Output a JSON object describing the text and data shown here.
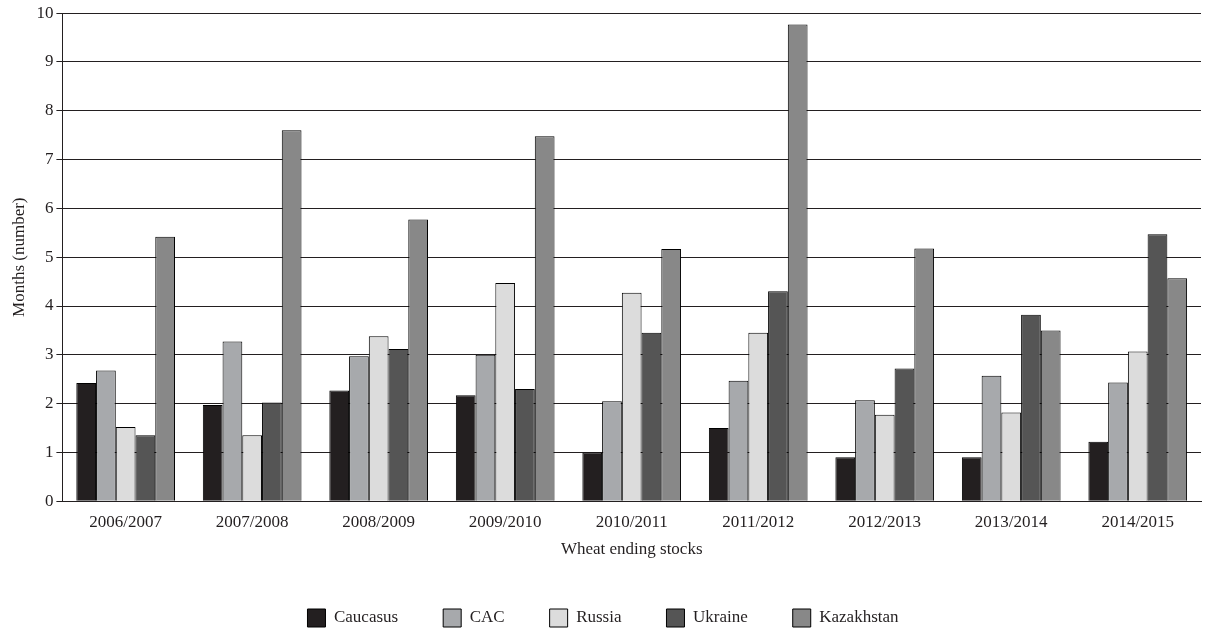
{
  "chart_data": {
    "type": "bar",
    "xlabel": "Wheat ending stocks",
    "ylabel": "Months (number)",
    "categories": [
      "2006/2007",
      "2007/2008",
      "2008/2009",
      "2009/2010",
      "2010/2011",
      "2011/2012",
      "2012/2013",
      "2013/2014",
      "2014/2015"
    ],
    "series": [
      {
        "name": "Caucasus",
        "color": "#231f20",
        "values": [
          2.42,
          1.97,
          2.27,
          2.17,
          1.0,
          1.5,
          0.9,
          0.9,
          1.22
        ]
      },
      {
        "name": "CAC",
        "color": "#a7a9ac",
        "values": [
          2.68,
          3.27,
          2.97,
          3.0,
          2.05,
          2.47,
          2.07,
          2.57,
          2.43
        ]
      },
      {
        "name": "Russia",
        "color": "#dcdcdc",
        "values": [
          1.52,
          1.35,
          3.38,
          4.47,
          4.27,
          3.45,
          1.77,
          1.82,
          3.07
        ]
      },
      {
        "name": "Ukraine",
        "color": "#555555",
        "values": [
          1.35,
          2.02,
          3.12,
          2.3,
          3.45,
          4.3,
          2.72,
          3.82,
          5.47
        ]
      },
      {
        "name": "Kazakhstan",
        "color": "#888888",
        "values": [
          5.42,
          7.6,
          5.77,
          7.48,
          5.17,
          9.77,
          5.18,
          3.5,
          4.57
        ]
      }
    ],
    "ylim": [
      0,
      10
    ],
    "yticks": [
      0,
      1,
      2,
      3,
      4,
      5,
      6,
      7,
      8,
      9,
      10
    ],
    "grid": "y",
    "legend": "bottom"
  }
}
